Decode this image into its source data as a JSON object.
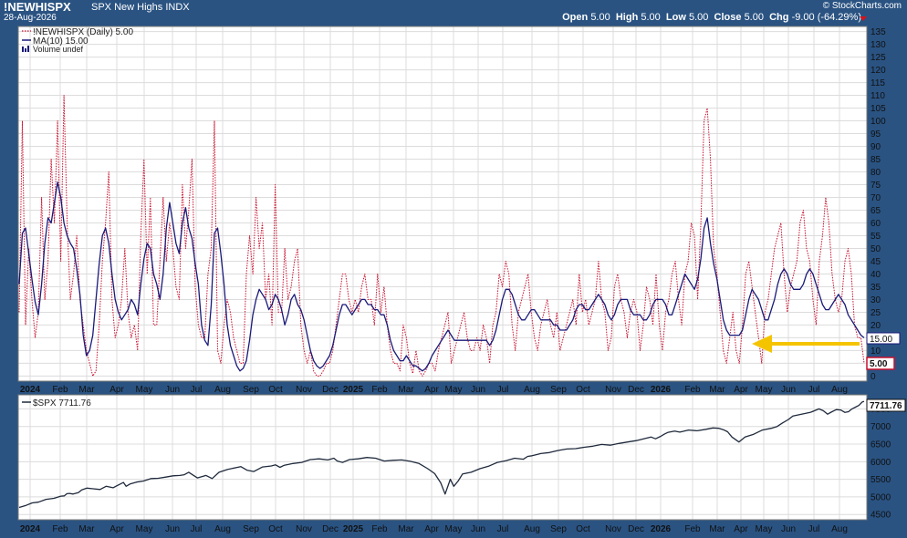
{
  "header": {
    "symbol": "!NEWHISPX",
    "description": "SPX New Highs",
    "exchange": "INDX",
    "date": "28-Aug-2026",
    "copyright": "© StockCharts.com",
    "open_label": "Open",
    "open": "5.00",
    "high_label": "High",
    "high": "5.00",
    "low_label": "Low",
    "low": "5.00",
    "close_label": "Close",
    "close": "5.00",
    "chg_label": "Chg",
    "chg": "-9.00 (-64.29%)"
  },
  "legend_top": {
    "series": "!NEWHISPX (Daily) 5.00",
    "ma": "MA(10) 15.00",
    "volume": "Volume undef"
  },
  "legend_bottom": {
    "series": "$SPX 7711.76"
  },
  "markers": {
    "ma_value": "15.00",
    "last_value": "5.00",
    "spx_value": "7711.76"
  },
  "colors": {
    "background": "#2a5382",
    "panel": "#ffffff",
    "grid": "#dcdcdc",
    "new_highs": "#c8102e",
    "ma": "#1a1a7a",
    "spx": "#1f2a3c",
    "arrow": "#f5c400"
  },
  "chart_data": [
    {
      "type": "line",
      "title": "!NEWHISPX SPX New Highs INDX",
      "x_labels": [
        "2024",
        "Feb",
        "Mar",
        "Apr",
        "May",
        "Jun",
        "Jul",
        "Aug",
        "Sep",
        "Oct",
        "Nov",
        "Dec",
        "2025",
        "Feb",
        "Mar",
        "Apr",
        "May",
        "Jun",
        "Jul",
        "Aug",
        "Sep",
        "Oct",
        "Nov",
        "Dec",
        "2026",
        "Feb",
        "Mar",
        "Apr",
        "May",
        "Jun",
        "Jul",
        "Aug"
      ],
      "y_ticks": [
        0,
        5,
        10,
        15,
        20,
        25,
        30,
        35,
        40,
        45,
        50,
        55,
        60,
        65,
        70,
        75,
        80,
        85,
        90,
        95,
        100,
        105,
        110,
        115,
        120,
        125,
        130,
        135
      ],
      "ylim": [
        -2,
        137
      ],
      "grid": true,
      "legend": "top-left",
      "annotation": "yellow arrow pointing left at level 15 (Apr to Aug 2026)",
      "series": [
        {
          "name": "!NEWHISPX (Daily)",
          "style": "dotted",
          "values": [
            25,
            100,
            20,
            50,
            30,
            15,
            25,
            70,
            30,
            45,
            85,
            60,
            100,
            45,
            110,
            60,
            30,
            40,
            55,
            30,
            20,
            10,
            5,
            0,
            2,
            20,
            45,
            60,
            80,
            30,
            15,
            20,
            30,
            50,
            25,
            15,
            20,
            10,
            55,
            85,
            40,
            70,
            20,
            20,
            45,
            70,
            45,
            60,
            50,
            35,
            30,
            75,
            50,
            65,
            85,
            35,
            20,
            15,
            15,
            40,
            50,
            100,
            10,
            5,
            20,
            30,
            25,
            15,
            10,
            5,
            5,
            40,
            55,
            40,
            70,
            50,
            60,
            30,
            40,
            20,
            75,
            25,
            25,
            50,
            30,
            35,
            45,
            50,
            20,
            10,
            5,
            10,
            2,
            0,
            0,
            2,
            5,
            5,
            10,
            20,
            30,
            40,
            40,
            30,
            25,
            30,
            25,
            35,
            40,
            30,
            30,
            20,
            40,
            25,
            35,
            20,
            10,
            5,
            5,
            2,
            20,
            15,
            5,
            1,
            10,
            2,
            0,
            2,
            5,
            5,
            2,
            10,
            15,
            20,
            25,
            5,
            10,
            15,
            20,
            25,
            15,
            10,
            10,
            15,
            10,
            20,
            15,
            5,
            20,
            25,
            40,
            35,
            45,
            40,
            20,
            10,
            25,
            30,
            35,
            40,
            25,
            15,
            10,
            20,
            25,
            30,
            20,
            15,
            25,
            10,
            15,
            20,
            25,
            30,
            20,
            40,
            25,
            30,
            20,
            25,
            30,
            45,
            30,
            25,
            10,
            15,
            35,
            40,
            30,
            25,
            15,
            25,
            30,
            25,
            10,
            20,
            35,
            30,
            20,
            40,
            20,
            10,
            25,
            30,
            40,
            45,
            30,
            20,
            40,
            45,
            60,
            55,
            30,
            60,
            100,
            105,
            85,
            50,
            40,
            25,
            10,
            5,
            15,
            25,
            10,
            5,
            20,
            40,
            45,
            35,
            25,
            15,
            5,
            25,
            30,
            40,
            50,
            55,
            60,
            40,
            25,
            35,
            40,
            45,
            60,
            65,
            50,
            45,
            30,
            20,
            45,
            55,
            70,
            60,
            40,
            30,
            25,
            30,
            45,
            50,
            40,
            20,
            15,
            15,
            5
          ]
        },
        {
          "name": "MA(10)",
          "style": "solid",
          "values": [
            36,
            56,
            58,
            48,
            38,
            29,
            24,
            36,
            52,
            62,
            60,
            68,
            76,
            70,
            60,
            55,
            52,
            50,
            42,
            32,
            16,
            8,
            10,
            16,
            30,
            44,
            55,
            58,
            52,
            40,
            30,
            25,
            22,
            24,
            26,
            30,
            28,
            24,
            36,
            46,
            52,
            50,
            40,
            36,
            30,
            40,
            58,
            68,
            60,
            52,
            48,
            60,
            66,
            58,
            54,
            44,
            36,
            20,
            14,
            12,
            28,
            56,
            58,
            48,
            36,
            20,
            12,
            8,
            4,
            2,
            3,
            6,
            14,
            24,
            30,
            34,
            32,
            30,
            26,
            28,
            32,
            30,
            26,
            20,
            24,
            30,
            32,
            28,
            26,
            22,
            16,
            10,
            6,
            4,
            3,
            4,
            6,
            8,
            12,
            18,
            24,
            28,
            28,
            26,
            24,
            26,
            28,
            30,
            30,
            28,
            28,
            26,
            26,
            24,
            24,
            20,
            14,
            10,
            8,
            6,
            6,
            8,
            6,
            4,
            4,
            3,
            2,
            3,
            5,
            8,
            10,
            12,
            14,
            16,
            18,
            16,
            14,
            14,
            14,
            14,
            14,
            14,
            14,
            14,
            14,
            14,
            14,
            12,
            14,
            18,
            24,
            30,
            34,
            34,
            32,
            28,
            24,
            22,
            22,
            24,
            26,
            26,
            24,
            22,
            22,
            22,
            22,
            20,
            20,
            18,
            18,
            18,
            20,
            22,
            26,
            28,
            28,
            26,
            26,
            28,
            30,
            32,
            30,
            28,
            24,
            22,
            24,
            28,
            30,
            30,
            30,
            26,
            24,
            24,
            24,
            22,
            22,
            24,
            28,
            30,
            30,
            30,
            28,
            24,
            24,
            28,
            32,
            36,
            40,
            38,
            36,
            34,
            38,
            46,
            58,
            62,
            52,
            44,
            38,
            30,
            22,
            18,
            16,
            16,
            16,
            16,
            18,
            24,
            30,
            34,
            32,
            30,
            26,
            22,
            22,
            26,
            30,
            36,
            40,
            42,
            40,
            36,
            34,
            34,
            34,
            36,
            40,
            42,
            40,
            36,
            32,
            28,
            26,
            26,
            28,
            30,
            32,
            30,
            28,
            24,
            22,
            20,
            18,
            16,
            15
          ]
        }
      ]
    },
    {
      "type": "line",
      "title": "$SPX",
      "x_labels": [
        "2024",
        "Feb",
        "Mar",
        "Apr",
        "May",
        "Jun",
        "Jul",
        "Aug",
        "Sep",
        "Oct",
        "Nov",
        "Dec",
        "2025",
        "Feb",
        "Mar",
        "Apr",
        "May",
        "Jun",
        "Jul",
        "Aug",
        "Sep",
        "Oct",
        "Nov",
        "Dec",
        "2026",
        "Feb",
        "Mar",
        "Apr",
        "May",
        "Jun",
        "Jul",
        "Aug"
      ],
      "y_ticks": [
        4500,
        5000,
        5500,
        6000,
        6500,
        7000,
        7500
      ],
      "ylim": [
        4350,
        7900
      ],
      "grid": true,
      "legend": "top-left",
      "series": [
        {
          "name": "$SPX",
          "style": "solid",
          "x": [
            0,
            8,
            15,
            22,
            31,
            40,
            48,
            52,
            55,
            58,
            62,
            68,
            72,
            78,
            85,
            93,
            100,
            108,
            115,
            120,
            123,
            128,
            135,
            143,
            152,
            160,
            168,
            177,
            185,
            190,
            195,
            205,
            215,
            222,
            230,
            240,
            255,
            262,
            270,
            280,
            290,
            295,
            300,
            305,
            315,
            325,
            335,
            345,
            355,
            362,
            366,
            372,
            380,
            390,
            400,
            410,
            420,
            430,
            440,
            450,
            460,
            470,
            478,
            485,
            490,
            496,
            500,
            505,
            510,
            520,
            530,
            540,
            550,
            560,
            570,
            580,
            585,
            590,
            595,
            600,
            610,
            620,
            630,
            640,
            650,
            660,
            670,
            680,
            690,
            700,
            710,
            720,
            727,
            732,
            738,
            742,
            746,
            750,
            754,
            760,
            770,
            780,
            790,
            798,
            805,
            810,
            815,
            820,
            828,
            835,
            845,
            855,
            865,
            872,
            878,
            885,
            890,
            900,
            910,
            915,
            920,
            925,
            930,
            935,
            940,
            945,
            950,
            954,
            958,
            962,
            966,
            970,
            972
          ],
          "y": [
            4700,
            4760,
            4830,
            4850,
            4930,
            4960,
            5020,
            5030,
            5090,
            5100,
            5080,
            5120,
            5200,
            5250,
            5230,
            5210,
            5300,
            5260,
            5350,
            5410,
            5300,
            5370,
            5420,
            5450,
            5520,
            5530,
            5560,
            5600,
            5610,
            5630,
            5700,
            5540,
            5610,
            5520,
            5700,
            5780,
            5860,
            5760,
            5720,
            5850,
            5880,
            5910,
            5840,
            5900,
            5950,
            5980,
            6060,
            6080,
            6050,
            6100,
            6020,
            5980,
            6060,
            6080,
            6120,
            6100,
            6020,
            6040,
            6050,
            6010,
            5950,
            5800,
            5660,
            5400,
            5080,
            5500,
            5300,
            5450,
            5650,
            5700,
            5800,
            5870,
            5980,
            6030,
            6100,
            6070,
            6150,
            6170,
            6200,
            6230,
            6260,
            6320,
            6360,
            6370,
            6410,
            6440,
            6490,
            6470,
            6520,
            6560,
            6600,
            6660,
            6700,
            6650,
            6720,
            6780,
            6830,
            6850,
            6870,
            6840,
            6900,
            6880,
            6920,
            6960,
            6950,
            6910,
            6850,
            6700,
            6560,
            6700,
            6780,
            6900,
            6950,
            7000,
            7100,
            7200,
            7300,
            7350,
            7400,
            7450,
            7500,
            7450,
            7350,
            7420,
            7480,
            7470,
            7400,
            7420,
            7500,
            7550,
            7600,
            7700,
            7711.76
          ]
        }
      ]
    }
  ]
}
